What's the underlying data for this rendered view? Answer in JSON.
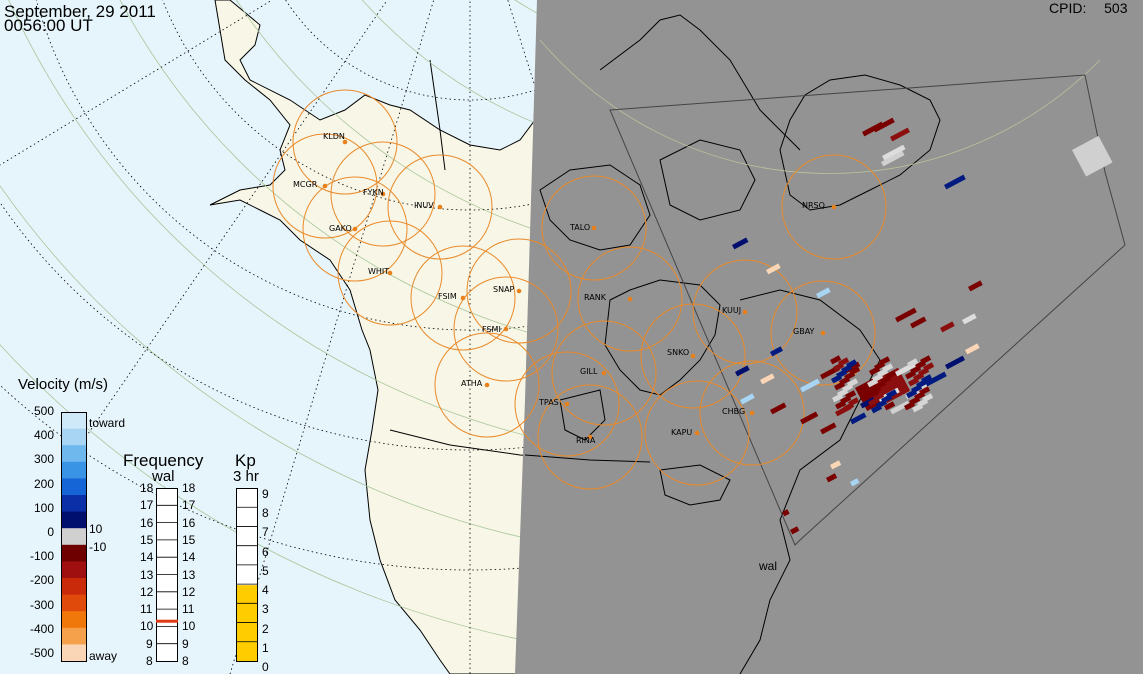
{
  "header": {
    "date": "September, 29 2011",
    "time": "0056:00 UT",
    "cpid_label": "CPID:",
    "cpid_value": "503"
  },
  "radars": [
    {
      "code": "KLDN"
    },
    {
      "code": "MCGR"
    },
    {
      "code": "FYKN"
    },
    {
      "code": "INUV"
    },
    {
      "code": "GAKO"
    },
    {
      "code": "WHIT"
    },
    {
      "code": "FSIM"
    },
    {
      "code": "SNAP"
    },
    {
      "code": "FSMI"
    },
    {
      "code": "ATHA"
    },
    {
      "code": "TALO"
    },
    {
      "code": "RANK"
    },
    {
      "code": "KUUJ"
    },
    {
      "code": "GBAY"
    },
    {
      "code": "NRSQ"
    },
    {
      "code": "SNKO"
    },
    {
      "code": "GILL"
    },
    {
      "code": "TPAS"
    },
    {
      "code": "CHBG"
    },
    {
      "code": "KAPU"
    },
    {
      "code": "RINA"
    }
  ],
  "fov_label": "wal",
  "velocity_legend": {
    "title": "Velocity (m/s)",
    "ticks": [
      "500",
      "400",
      "300",
      "200",
      "100",
      "0",
      "-100",
      "-200",
      "-300",
      "-400",
      "-500"
    ],
    "toward": "toward",
    "away": "away",
    "pos_threshold": "10",
    "neg_threshold": "-10",
    "colors": [
      "#cfe9f8",
      "#a8d5f3",
      "#6fb8ee",
      "#3a94e5",
      "#1565d6",
      "#0a2fa6",
      "#000f6e",
      "#d0d0d0",
      "#6e0000",
      "#a00f0f",
      "#c82a0a",
      "#e04a0a",
      "#f0780a",
      "#f5a04a",
      "#fbd6b6"
    ]
  },
  "frequency_legend": {
    "title": "Frequency",
    "subtitle": "wal",
    "left_ticks": [
      "18",
      "17",
      "16",
      "15",
      "14",
      "13",
      "12",
      "11",
      "10",
      "9",
      "8"
    ],
    "right_ticks": [
      "18",
      "17",
      "16",
      "15",
      "14",
      "13",
      "12",
      "11",
      "10",
      "9",
      "8"
    ],
    "marker_value": 10.3,
    "marker_color": "#e03a12"
  },
  "kp_legend": {
    "title": "Kp",
    "subtitle": "3 hr",
    "ticks": [
      "9",
      "8",
      "7",
      "6",
      "5",
      "4",
      "3",
      "2",
      "1",
      "0"
    ],
    "value": 4,
    "fill_color": "#ffcc00"
  },
  "colors": {
    "ocean": "#e6f4fb",
    "land": "#f8f6e6",
    "night": "#939393",
    "fov_circle": "#e98a2a",
    "radar_dot": "#e9801a"
  }
}
